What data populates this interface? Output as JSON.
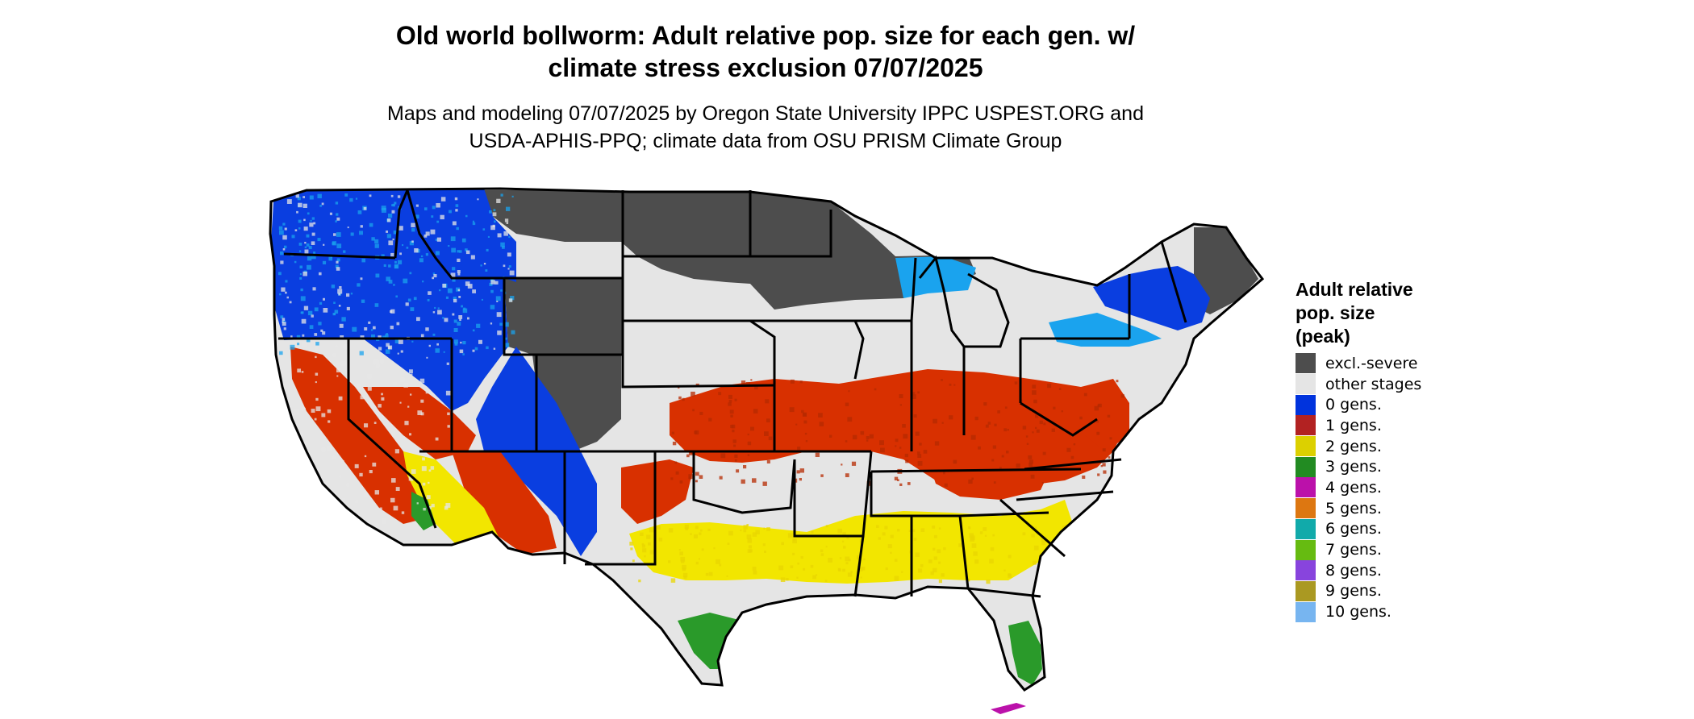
{
  "title": {
    "line1": "Old world bollworm: Adult relative pop. size for each gen. w/",
    "line2": "climate stress exclusion 07/07/2025"
  },
  "subtitle": {
    "line1": "Maps and modeling 07/07/2025 by Oregon State University IPPC USPEST.ORG and",
    "line2": "USDA-APHIS-PPQ; climate data from OSU PRISM Climate Group"
  },
  "legend": {
    "title_line1": "Adult relative",
    "title_line2": "pop. size",
    "title_line3": "(peak)",
    "items": [
      {
        "label": "excl.-severe",
        "color": "#4d4d4d"
      },
      {
        "label": "other stages",
        "color": "#e5e5e5"
      },
      {
        "label": "0 gens.",
        "color": "#0033dd"
      },
      {
        "label": "1 gens.",
        "color": "#b22222"
      },
      {
        "label": "2 gens.",
        "color": "#dcd000"
      },
      {
        "label": "3 gens.",
        "color": "#228b22"
      },
      {
        "label": "4 gens.",
        "color": "#bb11aa"
      },
      {
        "label": "5 gens.",
        "color": "#dd7711"
      },
      {
        "label": "6 gens.",
        "color": "#11aaaa"
      },
      {
        "label": "7 gens.",
        "color": "#66bb11"
      },
      {
        "label": "8 gens.",
        "color": "#8844dd"
      },
      {
        "label": "9 gens.",
        "color": "#aa9922"
      },
      {
        "label": "10 gens.",
        "color": "#77b5f0"
      }
    ]
  },
  "map_colors": {
    "outline": "#000000",
    "excluded": "#4d4d4d",
    "other": "#e5e5e5",
    "gen0": "#0a3ee0",
    "gen0_light": "#1aa3ee",
    "gen1": "#d83000",
    "gen2": "#f2e600",
    "gen3": "#2a9a2a",
    "gen4": "#bb11aa"
  }
}
